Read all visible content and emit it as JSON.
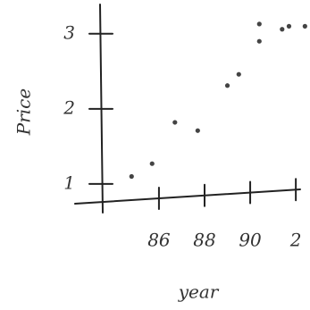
{
  "chart_data": {
    "type": "scatter",
    "x_label": "year",
    "y_label": "Price",
    "x": [
      84.8,
      85.7,
      86.7,
      87.7,
      89.0,
      89.5,
      90.4,
      90.4,
      91.4,
      91.7,
      92.4
    ],
    "y": [
      1.1,
      1.27,
      1.82,
      1.71,
      2.31,
      2.46,
      3.13,
      2.9,
      3.06,
      3.1,
      3.1
    ],
    "color": "#444444",
    "xlim": [
      82.4,
      92.7
    ],
    "xticks": [
      86,
      88,
      90,
      {
        "value": 92,
        "label": "2"
      }
    ],
    "ylim": [
      0.63,
      3.39
    ],
    "yticks": [
      1,
      2,
      3
    ],
    "grid": false
  }
}
